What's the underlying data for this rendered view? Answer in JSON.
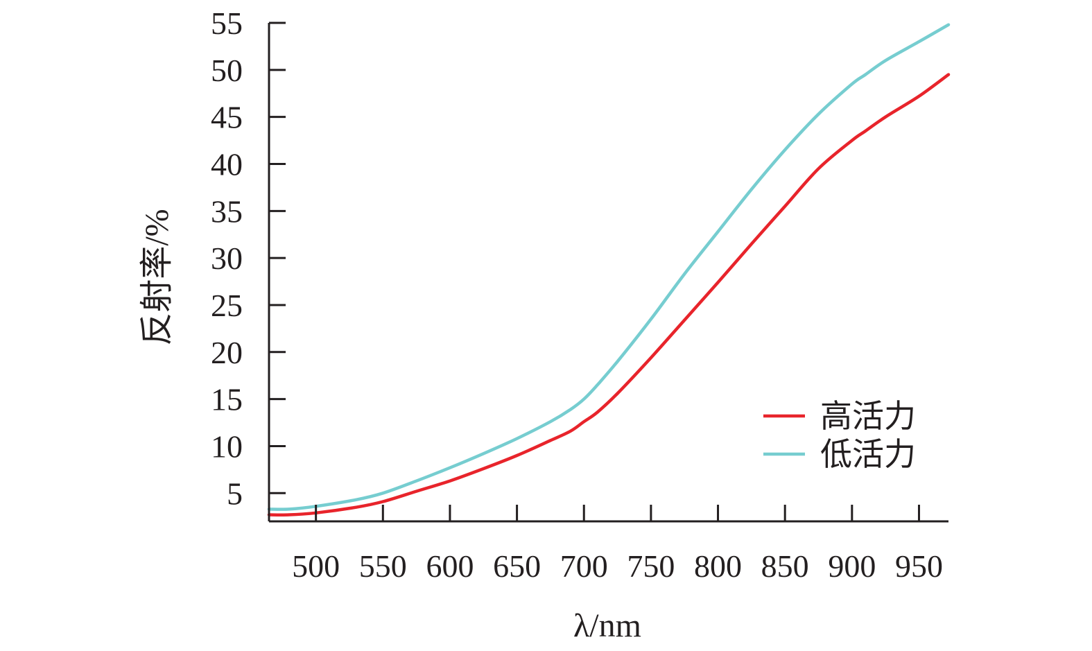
{
  "chart_data": {
    "type": "line",
    "xlabel": "λ/nm",
    "ylabel": "反射率/%",
    "xlim": [
      465,
      972
    ],
    "ylim": [
      2,
      55
    ],
    "xticks": [
      500,
      550,
      600,
      650,
      700,
      750,
      800,
      850,
      900,
      950
    ],
    "yticks": [
      5,
      10,
      15,
      20,
      25,
      30,
      35,
      40,
      45,
      50,
      55
    ],
    "grid": false,
    "legend_position": "bottom-right",
    "colors": {
      "axis": "#231f20",
      "high": "#e8242b",
      "low": "#76cdd0"
    },
    "series": [
      {
        "name": "高活力",
        "color": "#e8242b",
        "x": [
          465,
          480,
          500,
          530,
          550,
          575,
          600,
          625,
          650,
          675,
          690,
          700,
          710,
          725,
          750,
          775,
          800,
          825,
          850,
          875,
          900,
          910,
          925,
          950,
          972
        ],
        "y": [
          2.7,
          2.7,
          2.9,
          3.5,
          4.1,
          5.2,
          6.3,
          7.6,
          9.0,
          10.6,
          11.6,
          12.6,
          13.6,
          15.6,
          19.4,
          23.4,
          27.4,
          31.5,
          35.5,
          39.5,
          42.5,
          43.5,
          45.0,
          47.2,
          49.5
        ]
      },
      {
        "name": "低活力",
        "color": "#76cdd0",
        "x": [
          465,
          480,
          500,
          530,
          550,
          575,
          600,
          625,
          650,
          675,
          690,
          700,
          710,
          725,
          750,
          775,
          800,
          825,
          850,
          875,
          900,
          910,
          925,
          950,
          972
        ],
        "y": [
          3.3,
          3.3,
          3.6,
          4.3,
          5.0,
          6.3,
          7.7,
          9.2,
          10.8,
          12.6,
          13.9,
          15.0,
          16.5,
          19.0,
          23.5,
          28.3,
          32.8,
          37.3,
          41.5,
          45.3,
          48.5,
          49.5,
          51.0,
          53.0,
          54.8
        ]
      }
    ]
  }
}
